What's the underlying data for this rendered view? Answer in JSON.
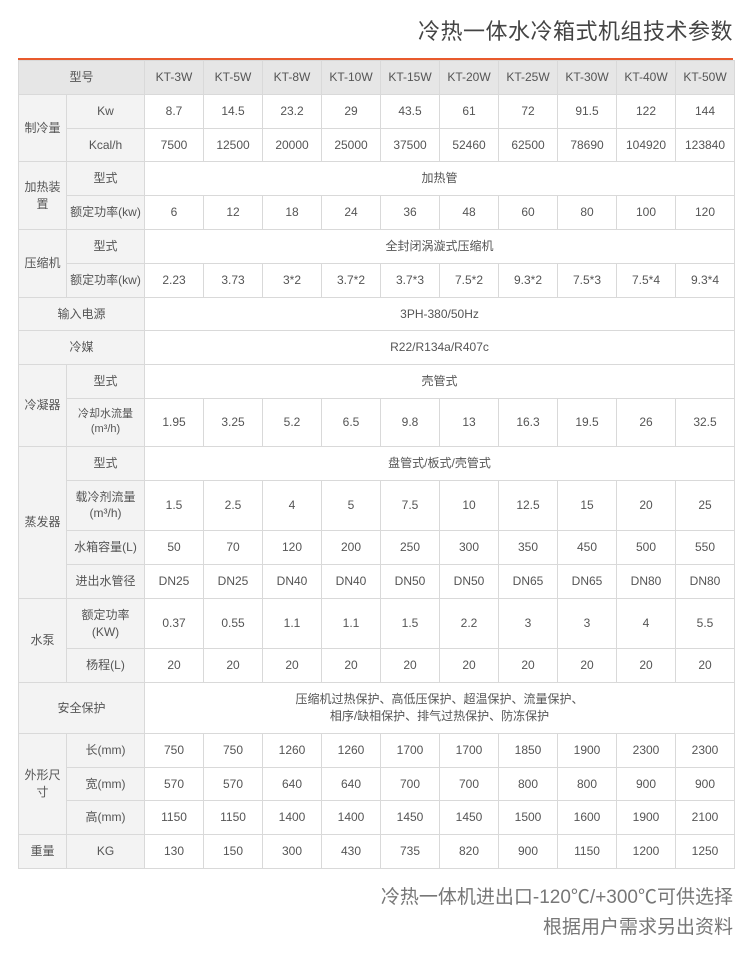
{
  "title": "冷热一体水冷箱式机组技术参数",
  "divider_color": "#e85a2d",
  "header": {
    "model_label": "型号",
    "models": [
      "KT-3W",
      "KT-5W",
      "KT-8W",
      "KT-10W",
      "KT-15W",
      "KT-20W",
      "KT-25W",
      "KT-30W",
      "KT-40W",
      "KT-50W"
    ]
  },
  "cooling": {
    "group": "制冷量",
    "kw_label": "Kw",
    "kw": [
      "8.7",
      "14.5",
      "23.2",
      "29",
      "43.5",
      "61",
      "72",
      "91.5",
      "122",
      "144"
    ],
    "kcal_label": "Kcal/h",
    "kcal": [
      "7500",
      "12500",
      "20000",
      "25000",
      "37500",
      "52460",
      "62500",
      "78690",
      "104920",
      "123840"
    ]
  },
  "heater": {
    "group": "加热装置",
    "type_label": "型式",
    "type": "加热管",
    "power_label": "额定功率(kw)",
    "power": [
      "6",
      "12",
      "18",
      "24",
      "36",
      "48",
      "60",
      "80",
      "100",
      "120"
    ]
  },
  "compressor": {
    "group": "压缩机",
    "type_label": "型式",
    "type": "全封闭涡漩式压缩机",
    "power_label": "额定功率(kw)",
    "power": [
      "2.23",
      "3.73",
      "3*2",
      "3.7*2",
      "3.7*3",
      "7.5*2",
      "9.3*2",
      "7.5*3",
      "7.5*4",
      "9.3*4"
    ]
  },
  "power_in": {
    "label": "输入电源",
    "value": "3PH-380/50Hz"
  },
  "refrigerant": {
    "label": "冷媒",
    "value": "R22/R134a/R407c"
  },
  "condenser": {
    "group": "冷凝器",
    "type_label": "型式",
    "type": "壳管式",
    "flow_label": "冷却水流量(m³/h)",
    "flow": [
      "1.95",
      "3.25",
      "5.2",
      "6.5",
      "9.8",
      "13",
      "16.3",
      "19.5",
      "26",
      "32.5"
    ]
  },
  "evaporator": {
    "group": "蒸发器",
    "type_label": "型式",
    "type": "盘管式/板式/壳管式",
    "coolant_label": "载冷剂流量(m³/h)",
    "coolant": [
      "1.5",
      "2.5",
      "4",
      "5",
      "7.5",
      "10",
      "12.5",
      "15",
      "20",
      "25"
    ],
    "tank_label": "水箱容量(L)",
    "tank": [
      "50",
      "70",
      "120",
      "200",
      "250",
      "300",
      "350",
      "450",
      "500",
      "550"
    ],
    "pipe_label": "进出水管径",
    "pipe": [
      "DN25",
      "DN25",
      "DN40",
      "DN40",
      "DN50",
      "DN50",
      "DN65",
      "DN65",
      "DN80",
      "DN80"
    ]
  },
  "pump": {
    "group": "水泵",
    "power_label": "额定功率(KW)",
    "power": [
      "0.37",
      "0.55",
      "1.1",
      "1.1",
      "1.5",
      "2.2",
      "3",
      "3",
      "4",
      "5.5"
    ],
    "head_label": "杨程(L)",
    "head": [
      "20",
      "20",
      "20",
      "20",
      "20",
      "20",
      "20",
      "20",
      "20",
      "20"
    ]
  },
  "safety": {
    "label": "安全保护",
    "line1": "压缩机过热保护、高低压保护、超温保护、流量保护、",
    "line2": "相序/缺相保护、排气过热保护、防冻保护"
  },
  "dims": {
    "group": "外形尺寸",
    "l_label": "长(mm)",
    "l": [
      "750",
      "750",
      "1260",
      "1260",
      "1700",
      "1700",
      "1850",
      "1900",
      "2300",
      "2300"
    ],
    "w_label": "宽(mm)",
    "w": [
      "570",
      "570",
      "640",
      "640",
      "700",
      "700",
      "800",
      "800",
      "900",
      "900"
    ],
    "h_label": "高(mm)",
    "h": [
      "1150",
      "1150",
      "1400",
      "1400",
      "1450",
      "1450",
      "1500",
      "1600",
      "1900",
      "2100"
    ]
  },
  "weight": {
    "group": "重量",
    "unit": "KG",
    "v": [
      "130",
      "150",
      "300",
      "430",
      "735",
      "820",
      "900",
      "1150",
      "1200",
      "1250"
    ]
  },
  "footer": {
    "line1": "冷热一体机进出口-120℃/+300℃可供选择",
    "line2": "根据用户需求另出资料"
  }
}
